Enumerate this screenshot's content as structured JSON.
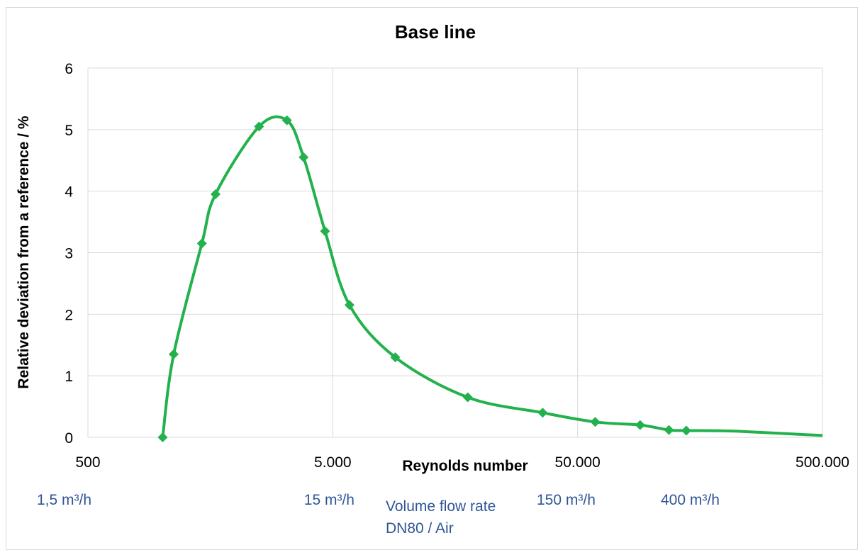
{
  "chart_data": {
    "type": "line",
    "title": "Base line",
    "xlabel": "Reynolds number",
    "ylabel": "Relative deviation from a reference  /  %",
    "x_scale": "log",
    "xlim": [
      500,
      500000
    ],
    "ylim": [
      0,
      6
    ],
    "x_ticks": [
      500,
      5000,
      50000,
      500000
    ],
    "x_tick_labels": [
      "500",
      "5.000",
      "50.000",
      "500.000"
    ],
    "y_ticks": [
      0,
      1,
      2,
      3,
      4,
      5,
      6
    ],
    "y_tick_labels": [
      "0",
      "1",
      "2",
      "3",
      "4",
      "5",
      "6"
    ],
    "grid": true,
    "series": [
      {
        "color": "#22b14c",
        "markers": "diamond",
        "points": [
          {
            "x": 1010,
            "y": 0
          },
          {
            "x": 1120,
            "y": 1.35
          },
          {
            "x": 1460,
            "y": 3.15
          },
          {
            "x": 1660,
            "y": 3.95
          },
          {
            "x": 2500,
            "y": 5.05
          },
          {
            "x": 3250,
            "y": 5.15
          },
          {
            "x": 3800,
            "y": 4.55
          },
          {
            "x": 4650,
            "y": 3.35
          },
          {
            "x": 5850,
            "y": 2.15
          },
          {
            "x": 9000,
            "y": 1.3
          },
          {
            "x": 17800,
            "y": 0.65
          },
          {
            "x": 36000,
            "y": 0.4
          },
          {
            "x": 59000,
            "y": 0.25
          },
          {
            "x": 90000,
            "y": 0.2
          },
          {
            "x": 118000,
            "y": 0.12
          },
          {
            "x": 139000,
            "y": 0.11
          },
          {
            "x": 220000,
            "y": 0.1
          },
          {
            "x": 500000,
            "y": 0.03
          }
        ]
      }
    ],
    "secondary_labels": {
      "title": "Volume flow rate",
      "subtitle": "DN80 / Air",
      "items": [
        {
          "label": "1,5 m³/h",
          "x": 500
        },
        {
          "label": "15 m³/h",
          "x": 5000
        },
        {
          "label": "150 m³/h",
          "x": 50000
        },
        {
          "label": "400 m³/h",
          "x": 135000
        }
      ]
    },
    "colors": {
      "line": "#22b14c",
      "secondary_text": "#2f5597",
      "grid": "#d9d9d9"
    }
  }
}
